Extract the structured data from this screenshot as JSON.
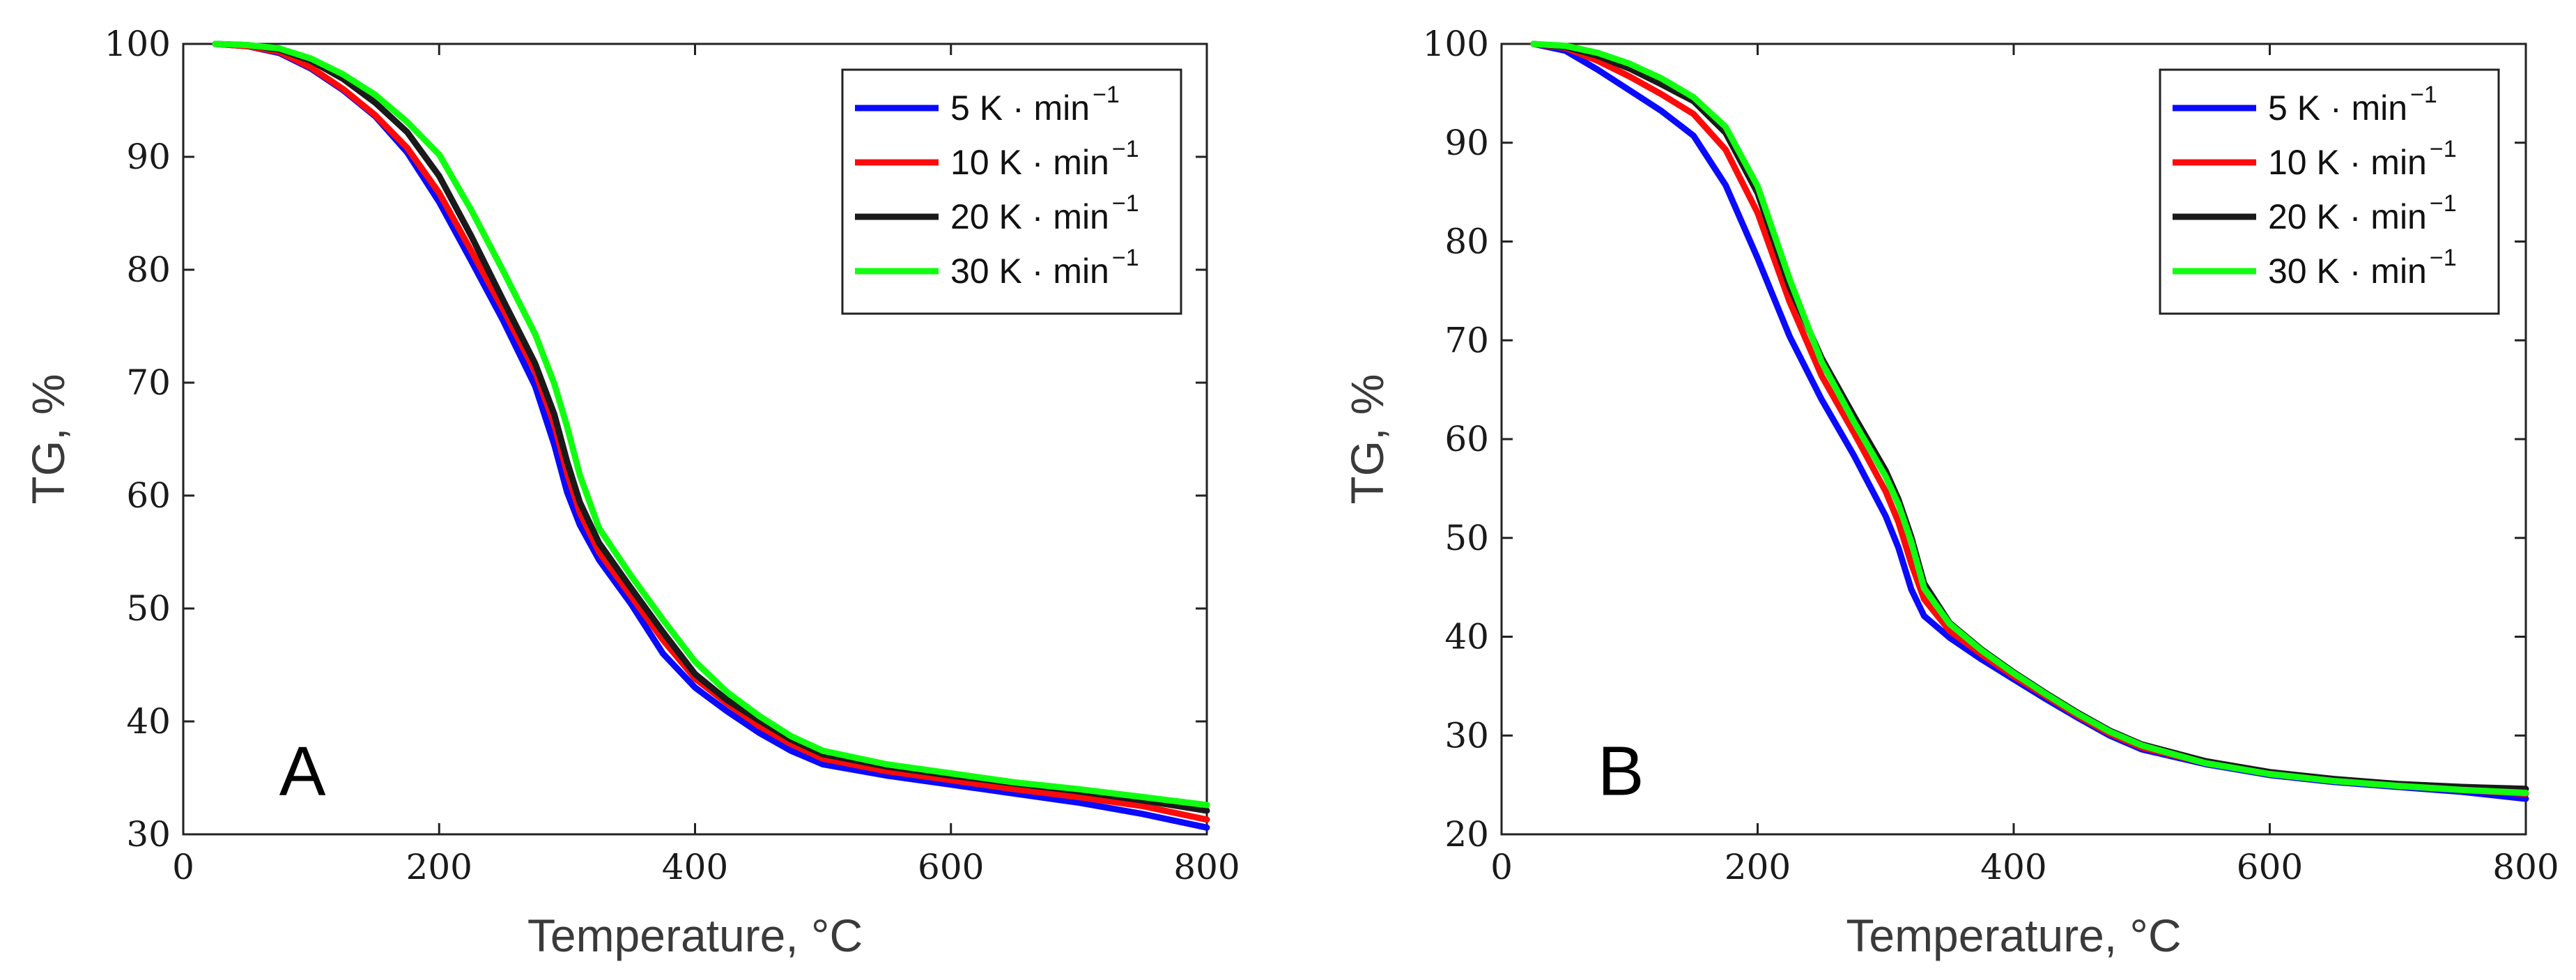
{
  "chart_data": [
    {
      "type": "line",
      "panel_label": "A",
      "xlabel": "Temperature, °C",
      "ylabel": "TG, %",
      "xlim": [
        0,
        800
      ],
      "ylim": [
        30,
        100
      ],
      "xticks": [
        "0",
        "200",
        "400",
        "600",
        "800"
      ],
      "yticks": [
        "30",
        "40",
        "50",
        "60",
        "70",
        "80",
        "90",
        "100"
      ],
      "legend_position": "top-right",
      "grid": false,
      "series": [
        {
          "name": "5 K · min",
          "sup": "−1",
          "color": "#0a0aff",
          "x": [
            25,
            50,
            75,
            100,
            125,
            150,
            175,
            200,
            225,
            250,
            275,
            290,
            300,
            310,
            325,
            350,
            375,
            400,
            425,
            450,
            475,
            500,
            550,
            600,
            650,
            700,
            750,
            800
          ],
          "y": [
            100,
            99.8,
            99.2,
            97.8,
            95.9,
            93.6,
            90.4,
            86,
            80.8,
            75.5,
            69.7,
            64.5,
            60.3,
            57.4,
            54.3,
            50.4,
            46,
            43,
            40.9,
            39,
            37.4,
            36.2,
            35.2,
            34.4,
            33.6,
            32.8,
            31.8,
            30.6
          ]
        },
        {
          "name": "10 K · min",
          "sup": "−1",
          "color": "#ff0a0a",
          "x": [
            25,
            50,
            75,
            100,
            125,
            150,
            175,
            200,
            225,
            250,
            275,
            290,
            300,
            310,
            325,
            350,
            375,
            400,
            425,
            450,
            475,
            500,
            550,
            600,
            650,
            700,
            750,
            800
          ],
          "y": [
            100,
            99.8,
            99.3,
            97.9,
            96,
            93.7,
            90.8,
            86.8,
            81.7,
            76.5,
            71,
            66.3,
            62,
            58.5,
            55,
            51.1,
            47.2,
            43.8,
            41.6,
            39.6,
            38,
            36.7,
            35.6,
            34.8,
            34,
            33.3,
            32.5,
            31.3
          ]
        },
        {
          "name": "20 K · min",
          "sup": "−1",
          "color": "#1a1a1a",
          "x": [
            25,
            50,
            75,
            100,
            125,
            150,
            175,
            200,
            225,
            250,
            275,
            290,
            300,
            310,
            325,
            350,
            375,
            400,
            425,
            450,
            475,
            500,
            550,
            600,
            650,
            700,
            750,
            800
          ],
          "y": [
            100,
            99.9,
            99.5,
            98.5,
            96.9,
            94.8,
            92.2,
            88.3,
            83,
            77.3,
            71.7,
            67.2,
            63,
            59.4,
            55.8,
            51.8,
            47.9,
            44.2,
            41.9,
            40.1,
            38.4,
            37.1,
            36,
            35.2,
            34.5,
            33.8,
            33,
            32.1
          ]
        },
        {
          "name": "30 K · min",
          "sup": "−1",
          "color": "#10ff10",
          "x": [
            25,
            50,
            75,
            100,
            125,
            150,
            175,
            200,
            225,
            250,
            275,
            290,
            300,
            310,
            325,
            350,
            375,
            400,
            425,
            450,
            475,
            500,
            550,
            600,
            650,
            700,
            750,
            800
          ],
          "y": [
            100,
            99.9,
            99.6,
            98.7,
            97.3,
            95.5,
            93.1,
            90.2,
            85.3,
            79.9,
            74.3,
            69.9,
            66.1,
            61.8,
            57.1,
            52.9,
            49,
            45.3,
            42.6,
            40.5,
            38.7,
            37.4,
            36.2,
            35.4,
            34.6,
            34,
            33.3,
            32.6
          ]
        }
      ]
    },
    {
      "type": "line",
      "panel_label": "B",
      "xlabel": "Temperature, °C",
      "ylabel": "TG, %",
      "xlim": [
        0,
        800
      ],
      "ylim": [
        20,
        100
      ],
      "xticks": [
        "0",
        "200",
        "400",
        "600",
        "800"
      ],
      "yticks": [
        "20",
        "30",
        "40",
        "50",
        "60",
        "70",
        "80",
        "90",
        "100"
      ],
      "legend_position": "top-right",
      "grid": false,
      "series": [
        {
          "name": "5 K · min",
          "sup": "−1",
          "color": "#0a0aff",
          "x": [
            25,
            50,
            75,
            100,
            125,
            150,
            175,
            200,
            225,
            250,
            275,
            300,
            310,
            320,
            330,
            350,
            375,
            400,
            425,
            450,
            475,
            500,
            550,
            600,
            650,
            700,
            750,
            800
          ],
          "y": [
            100,
            99.3,
            97.4,
            95.3,
            93.2,
            90.7,
            85.7,
            78.3,
            70.4,
            64,
            58.4,
            52.2,
            49,
            44.8,
            42.1,
            39.9,
            37.7,
            35.7,
            33.7,
            31.8,
            30,
            28.6,
            27.1,
            26,
            25.3,
            24.8,
            24.3,
            23.6
          ]
        },
        {
          "name": "10 K · min",
          "sup": "−1",
          "color": "#ff0a0a",
          "x": [
            25,
            50,
            75,
            100,
            125,
            150,
            175,
            200,
            225,
            250,
            275,
            300,
            310,
            320,
            330,
            350,
            375,
            400,
            425,
            450,
            475,
            500,
            550,
            600,
            650,
            700,
            750,
            800
          ],
          "y": [
            100,
            99.6,
            98.3,
            96.7,
            94.9,
            92.9,
            89.3,
            82.9,
            73.9,
            66.4,
            60.7,
            54.7,
            51.6,
            47.4,
            43.8,
            40.6,
            38.2,
            36,
            34,
            32,
            30.2,
            28.8,
            27.2,
            26.1,
            25.4,
            24.9,
            24.5,
            24.1
          ]
        },
        {
          "name": "20 K · min",
          "sup": "−1",
          "color": "#1a1a1a",
          "x": [
            25,
            50,
            75,
            100,
            125,
            150,
            175,
            200,
            225,
            250,
            275,
            300,
            310,
            320,
            330,
            350,
            375,
            400,
            425,
            450,
            475,
            500,
            550,
            600,
            650,
            700,
            750,
            800
          ],
          "y": [
            100,
            99.7,
            98.8,
            97.5,
            95.9,
            94.2,
            91,
            84.9,
            75.4,
            68.2,
            62.4,
            56.8,
            53.9,
            50.1,
            45.4,
            41.4,
            38.7,
            36.4,
            34.3,
            32.3,
            30.5,
            29.1,
            27.4,
            26.3,
            25.6,
            25.1,
            24.8,
            24.6
          ]
        },
        {
          "name": "30 K · min",
          "sup": "−1",
          "color": "#10ff10",
          "x": [
            25,
            50,
            75,
            100,
            125,
            150,
            175,
            200,
            225,
            250,
            275,
            300,
            310,
            320,
            330,
            350,
            375,
            400,
            425,
            450,
            475,
            500,
            550,
            600,
            650,
            700,
            750,
            800
          ],
          "y": [
            100,
            99.8,
            99.1,
            98,
            96.5,
            94.6,
            91.6,
            85.6,
            76.2,
            67.8,
            61.8,
            56.2,
            53.4,
            49.6,
            44.9,
            41.3,
            38.6,
            36.3,
            34.2,
            32.2,
            30.4,
            29,
            27.2,
            26.1,
            25.4,
            24.9,
            24.5,
            24.2
          ]
        }
      ]
    }
  ]
}
